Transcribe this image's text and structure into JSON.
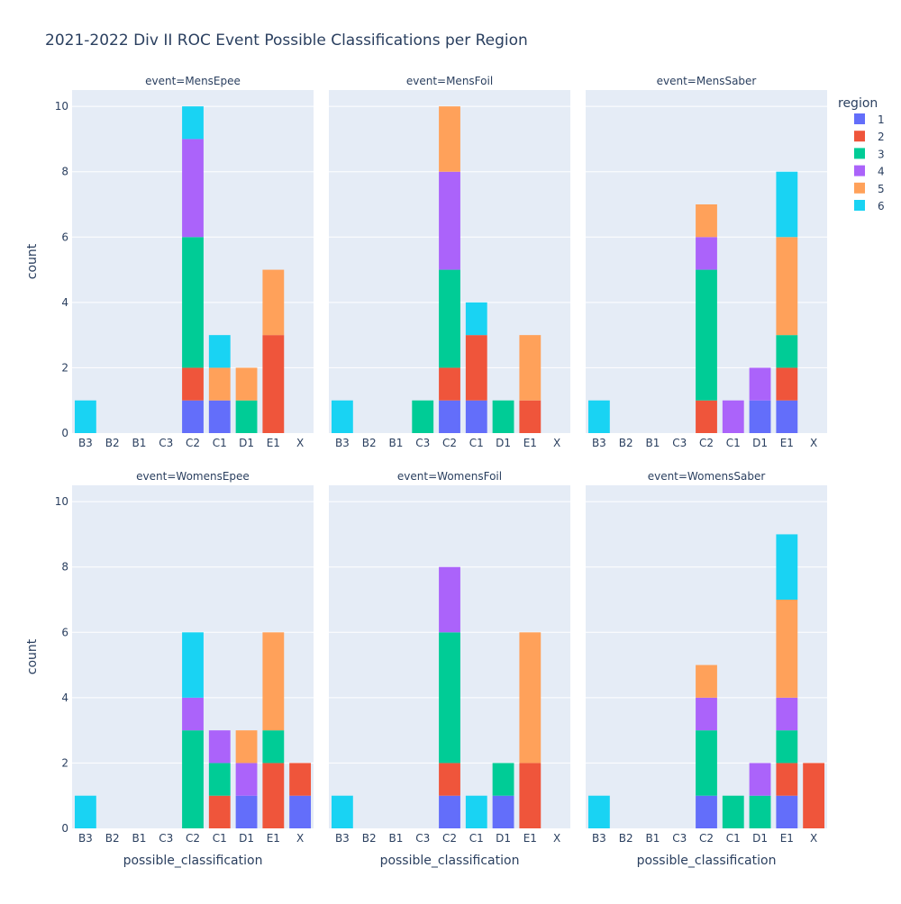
{
  "chart_data": {
    "type": "bar",
    "barmode": "stack",
    "title": "2021-2022 Div II ROC Event Possible Classifications per Region",
    "xlabel": "possible_classification",
    "ylabel": "count",
    "ylim": [
      0,
      10.5
    ],
    "yticks": [
      0,
      2,
      4,
      6,
      8,
      10
    ],
    "grid": true,
    "categories": [
      "B3",
      "B2",
      "B1",
      "C3",
      "C2",
      "C1",
      "D1",
      "E1",
      "X"
    ],
    "legend": {
      "title": "region",
      "placement": "right",
      "items": [
        {
          "name": "1",
          "color": "#636efa"
        },
        {
          "name": "2",
          "color": "#EF553B"
        },
        {
          "name": "3",
          "color": "#00cc96"
        },
        {
          "name": "4",
          "color": "#ab63fa"
        },
        {
          "name": "5",
          "color": "#FFA15A"
        },
        {
          "name": "6",
          "color": "#19d3f3"
        }
      ]
    },
    "facets": [
      {
        "title": "event=MensEpee",
        "series": [
          {
            "name": "1",
            "values": [
              0,
              0,
              0,
              0,
              1,
              1,
              0,
              0,
              0
            ]
          },
          {
            "name": "2",
            "values": [
              0,
              0,
              0,
              0,
              1,
              0,
              0,
              3,
              0
            ]
          },
          {
            "name": "3",
            "values": [
              0,
              0,
              0,
              0,
              4,
              0,
              1,
              0,
              0
            ]
          },
          {
            "name": "4",
            "values": [
              0,
              0,
              0,
              0,
              3,
              0,
              0,
              0,
              0
            ]
          },
          {
            "name": "5",
            "values": [
              0,
              0,
              0,
              0,
              0,
              1,
              1,
              2,
              0
            ]
          },
          {
            "name": "6",
            "values": [
              1,
              0,
              0,
              0,
              1,
              1,
              0,
              0,
              0
            ]
          }
        ]
      },
      {
        "title": "event=MensFoil",
        "series": [
          {
            "name": "1",
            "values": [
              0,
              0,
              0,
              0,
              1,
              1,
              0,
              0,
              0
            ]
          },
          {
            "name": "2",
            "values": [
              0,
              0,
              0,
              0,
              1,
              2,
              0,
              1,
              0
            ]
          },
          {
            "name": "3",
            "values": [
              0,
              0,
              0,
              1,
              3,
              0,
              1,
              0,
              0
            ]
          },
          {
            "name": "4",
            "values": [
              0,
              0,
              0,
              0,
              3,
              0,
              0,
              0,
              0
            ]
          },
          {
            "name": "5",
            "values": [
              0,
              0,
              0,
              0,
              2,
              0,
              0,
              2,
              0
            ]
          },
          {
            "name": "6",
            "values": [
              1,
              0,
              0,
              0,
              0,
              1,
              0,
              0,
              0
            ]
          }
        ]
      },
      {
        "title": "event=MensSaber",
        "series": [
          {
            "name": "1",
            "values": [
              0,
              0,
              0,
              0,
              0,
              0,
              1,
              1,
              0
            ]
          },
          {
            "name": "2",
            "values": [
              0,
              0,
              0,
              0,
              1,
              0,
              0,
              1,
              0
            ]
          },
          {
            "name": "3",
            "values": [
              0,
              0,
              0,
              0,
              4,
              0,
              0,
              1,
              0
            ]
          },
          {
            "name": "4",
            "values": [
              0,
              0,
              0,
              0,
              1,
              1,
              1,
              0,
              0
            ]
          },
          {
            "name": "5",
            "values": [
              0,
              0,
              0,
              0,
              1,
              0,
              0,
              3,
              0
            ]
          },
          {
            "name": "6",
            "values": [
              1,
              0,
              0,
              0,
              0,
              0,
              0,
              2,
              0
            ]
          }
        ]
      },
      {
        "title": "event=WomensEpee",
        "series": [
          {
            "name": "1",
            "values": [
              0,
              0,
              0,
              0,
              0,
              0,
              1,
              0,
              1
            ]
          },
          {
            "name": "2",
            "values": [
              0,
              0,
              0,
              0,
              0,
              1,
              0,
              2,
              1
            ]
          },
          {
            "name": "3",
            "values": [
              0,
              0,
              0,
              0,
              3,
              1,
              0,
              1,
              0
            ]
          },
          {
            "name": "4",
            "values": [
              0,
              0,
              0,
              0,
              1,
              1,
              1,
              0,
              0
            ]
          },
          {
            "name": "5",
            "values": [
              0,
              0,
              0,
              0,
              0,
              0,
              1,
              3,
              0
            ]
          },
          {
            "name": "6",
            "values": [
              1,
              0,
              0,
              0,
              2,
              0,
              0,
              0,
              0
            ]
          }
        ]
      },
      {
        "title": "event=WomensFoil",
        "series": [
          {
            "name": "1",
            "values": [
              0,
              0,
              0,
              0,
              1,
              0,
              1,
              0,
              0
            ]
          },
          {
            "name": "2",
            "values": [
              0,
              0,
              0,
              0,
              1,
              0,
              0,
              2,
              0
            ]
          },
          {
            "name": "3",
            "values": [
              0,
              0,
              0,
              0,
              4,
              0,
              1,
              0,
              0
            ]
          },
          {
            "name": "4",
            "values": [
              0,
              0,
              0,
              0,
              2,
              0,
              0,
              0,
              0
            ]
          },
          {
            "name": "5",
            "values": [
              0,
              0,
              0,
              0,
              0,
              0,
              0,
              4,
              0
            ]
          },
          {
            "name": "6",
            "values": [
              1,
              0,
              0,
              0,
              0,
              1,
              0,
              0,
              0
            ]
          }
        ]
      },
      {
        "title": "event=WomensSaber",
        "series": [
          {
            "name": "1",
            "values": [
              0,
              0,
              0,
              0,
              1,
              0,
              0,
              1,
              0
            ]
          },
          {
            "name": "2",
            "values": [
              0,
              0,
              0,
              0,
              0,
              0,
              0,
              1,
              2
            ]
          },
          {
            "name": "3",
            "values": [
              0,
              0,
              0,
              0,
              2,
              1,
              1,
              1,
              0
            ]
          },
          {
            "name": "4",
            "values": [
              0,
              0,
              0,
              0,
              1,
              0,
              1,
              1,
              0
            ]
          },
          {
            "name": "5",
            "values": [
              0,
              0,
              0,
              0,
              1,
              0,
              0,
              3,
              0
            ]
          },
          {
            "name": "6",
            "values": [
              1,
              0,
              0,
              0,
              0,
              0,
              0,
              2,
              0
            ]
          }
        ]
      }
    ]
  }
}
